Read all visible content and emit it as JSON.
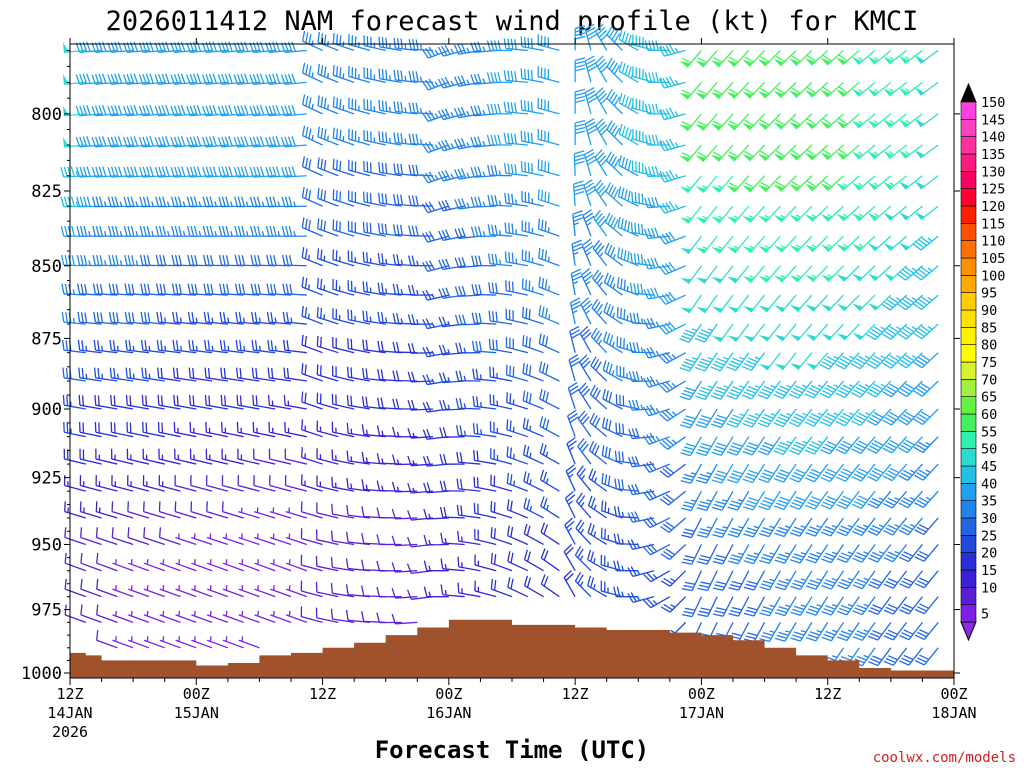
{
  "chart_data": {
    "type": "wind-barb-profile",
    "title": "2026011412 NAM forecast wind profile (kt) for KMCI",
    "xlabel": "Forecast Time (UTC)",
    "ylabel": "",
    "credit": "coolwx.com/models",
    "y_scale": "pressure (reversed)",
    "ylim": [
      1002,
      778
    ],
    "yticks": [
      "800",
      "825",
      "850",
      "875",
      "900",
      "925",
      "950",
      "975",
      "1000"
    ],
    "xlim_hours": [
      0,
      84
    ],
    "xticks": [
      {
        "label": "12Z",
        "date": "14JAN",
        "year": "2026"
      },
      {
        "label": "00Z",
        "date": "15JAN",
        "year": ""
      },
      {
        "label": "12Z",
        "date": "",
        "year": ""
      },
      {
        "label": "00Z",
        "date": "16JAN",
        "year": ""
      },
      {
        "label": "12Z",
        "date": "",
        "year": ""
      },
      {
        "label": "00Z",
        "date": "17JAN",
        "year": ""
      },
      {
        "label": "12Z",
        "date": "",
        "year": ""
      },
      {
        "label": "00Z",
        "date": "18JAN",
        "year": ""
      }
    ],
    "colorbar": {
      "labels": [
        "5",
        "10",
        "15",
        "20",
        "25",
        "30",
        "35",
        "40",
        "45",
        "50",
        "55",
        "60",
        "65",
        "70",
        "75",
        "80",
        "85",
        "90",
        "95",
        "100",
        "105",
        "110",
        "115",
        "120",
        "125",
        "130",
        "135",
        "140",
        "145",
        "150"
      ],
      "colors": [
        "#7d1fe6",
        "#5a1fd4",
        "#3a22d6",
        "#2a30d8",
        "#1f4ae0",
        "#2266e6",
        "#1f84ec",
        "#20a0ee",
        "#22c0e8",
        "#2adcd0",
        "#2ff0b0",
        "#44f060",
        "#66f040",
        "#a0f040",
        "#d8f430",
        "#ffff00",
        "#fff000",
        "#ffe000",
        "#ffcc00",
        "#ffaa00",
        "#ff9000",
        "#ff7000",
        "#ff5000",
        "#ff2000",
        "#ff0030",
        "#ff0060",
        "#ff1a80",
        "#ff30a0",
        "#ff40c0",
        "#ff40e0"
      ],
      "over_color": "#000000",
      "under_color": "#8a2be2"
    },
    "terrain": {
      "color": "#a0522d",
      "surface_pressure": [
        [
          0,
          992
        ],
        [
          3,
          993
        ],
        [
          6,
          995
        ],
        [
          12,
          995
        ],
        [
          18,
          995
        ],
        [
          24,
          997
        ],
        [
          30,
          996
        ],
        [
          36,
          993
        ],
        [
          42,
          992
        ],
        [
          48,
          990
        ],
        [
          54,
          988
        ],
        [
          60,
          985
        ],
        [
          66,
          982
        ],
        [
          72,
          979
        ],
        [
          78,
          979
        ],
        [
          84,
          981
        ],
        [
          90,
          981
        ],
        [
          96,
          982
        ],
        [
          102,
          983
        ],
        [
          108,
          983
        ],
        [
          114,
          984
        ],
        [
          120,
          985
        ],
        [
          126,
          987
        ],
        [
          132,
          990
        ],
        [
          138,
          993
        ],
        [
          144,
          995
        ],
        [
          150,
          998
        ],
        [
          156,
          999
        ],
        [
          162,
          999
        ],
        [
          168,
          1000
        ],
        [
          171,
          1001
        ]
      ]
    },
    "wind_time_hours": [
      0,
      84
    ],
    "wind_time_step": 1.5,
    "wind_levels": [
      780,
      790,
      800,
      810,
      820,
      830,
      840,
      850,
      860,
      870,
      880,
      890,
      900,
      910,
      920,
      930,
      940,
      950,
      960,
      970,
      980,
      990,
      1000
    ],
    "wind_regime": {
      "description": "W-SW winds 20-45 kt aloft early; light NW flow near surface through 16JAN 00Z; S-SW 35-65 kt low-level jet aloft on 17JAN",
      "speed_range_kt": [
        5,
        65
      ]
    }
  }
}
